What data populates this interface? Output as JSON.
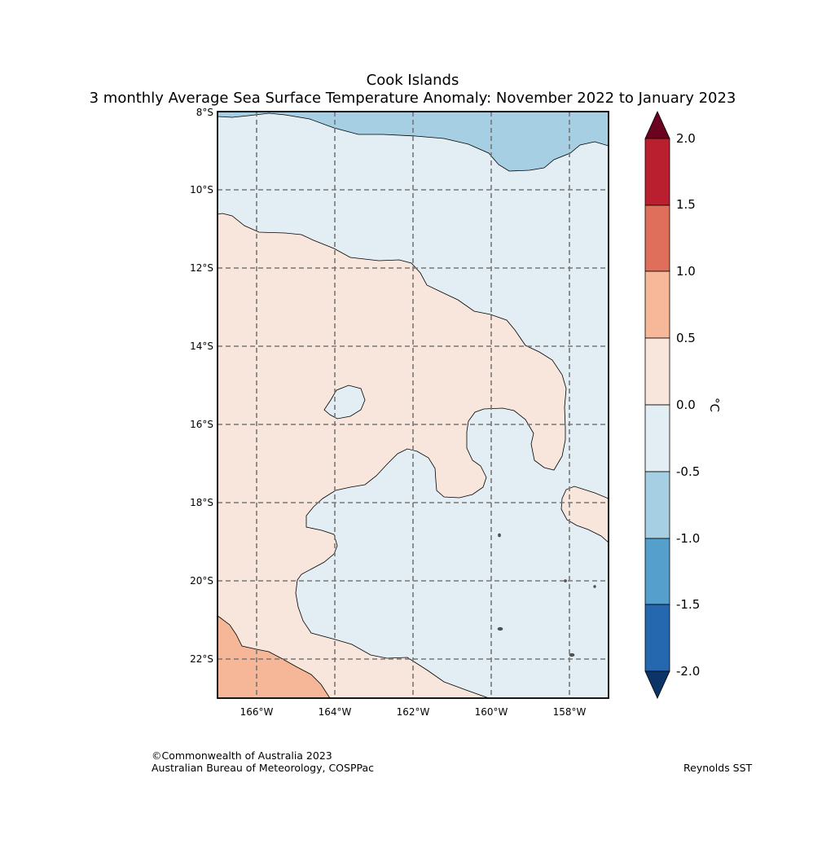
{
  "title": {
    "line1": "Cook Islands",
    "line2": "3 monthly Average Sea Surface Temperature Anomaly: November 2022 to January 2023"
  },
  "map": {
    "lat_labels": [
      "8°S",
      "10°S",
      "12°S",
      "14°S",
      "16°S",
      "18°S",
      "20°S",
      "22°S"
    ],
    "lon_labels": [
      "166°W",
      "164°W",
      "162°W",
      "160°W",
      "158°W"
    ],
    "region_colors": {
      "anom_neg_1_to_neg_0_5": "#a6cfe3",
      "anom_neg_0_5_to_0": "#e2edf4",
      "anom_0_to_0_5": "#f8e6dc",
      "anom_0_5_to_1": "#f6b799"
    }
  },
  "colorbar": {
    "unit": "°C",
    "ticks": [
      "2.0",
      "1.5",
      "1.0",
      "0.5",
      "0.0",
      "-0.5",
      "-1.0",
      "-1.5",
      "-2.0"
    ],
    "colors": [
      "#6a0220",
      "#b91f2e",
      "#df6f5a",
      "#f7b799",
      "#f8e6dc",
      "#e2edf4",
      "#a6cfe3",
      "#559fcd",
      "#2668b0",
      "#0b3469"
    ]
  },
  "credits": {
    "line1": "©Commonwealth of Australia 2023",
    "line2": "Australian Bureau of Meteorology, COSPPac",
    "source": "Reynolds SST"
  }
}
